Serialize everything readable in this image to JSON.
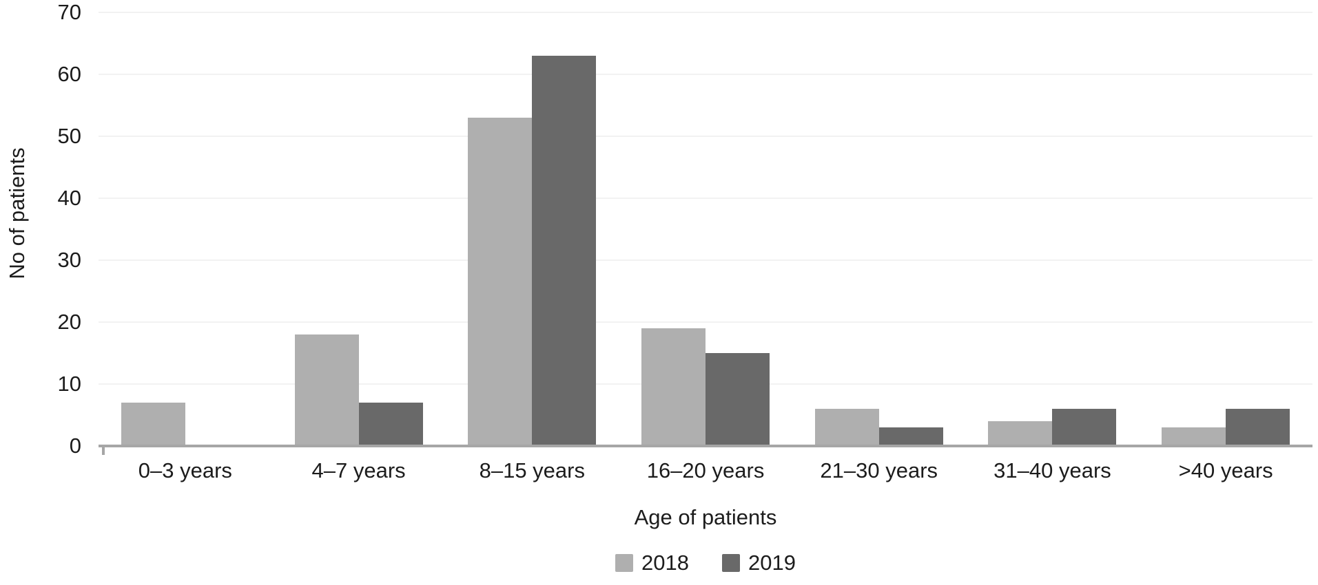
{
  "figure": {
    "background": "#ffffff",
    "text_color": "#1c1c1c"
  },
  "chart_data": {
    "type": "bar",
    "title": "",
    "xlabel": "Age of patients",
    "ylabel": "No of patients",
    "categories": [
      "0–3 years",
      "4–7 years",
      "8–15 years",
      "16–20 years",
      "21–30 years",
      "31–40 years",
      ">40 years"
    ],
    "series": [
      {
        "name": "2018",
        "color": "#afafaf",
        "values": [
          7,
          18,
          53,
          19,
          6,
          4,
          3
        ]
      },
      {
        "name": "2019",
        "color": "#696969",
        "values": [
          0,
          7,
          63,
          15,
          3,
          6,
          6
        ]
      }
    ],
    "ylim": [
      0,
      70
    ],
    "yticks": [
      0,
      10,
      20,
      30,
      40,
      50,
      60,
      70
    ],
    "grid": "horizontal",
    "legend_position": "bottom",
    "gridline_color": "#f2f2f2",
    "axis_line_color": "#a6a6a6"
  }
}
